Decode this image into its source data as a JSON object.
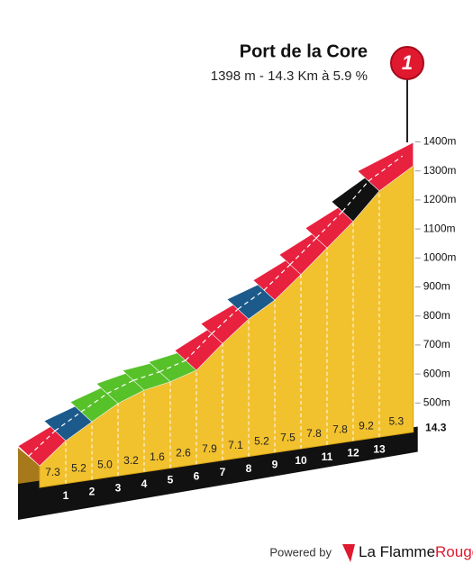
{
  "chart_data": {
    "type": "climb-profile",
    "title": "Port de la Core",
    "subtitle": "1398 m - 14.3 Km à 5.9 %",
    "badge": "1",
    "summit_altitude": 1398,
    "ylim": [
      400,
      1400
    ],
    "yticks": [
      {
        "value": 500,
        "label": "500m"
      },
      {
        "value": 600,
        "label": "600m"
      },
      {
        "value": 700,
        "label": "700m"
      },
      {
        "value": 800,
        "label": "800m"
      },
      {
        "value": 900,
        "label": "900m"
      },
      {
        "value": 1000,
        "label": "1000m"
      },
      {
        "value": 1100,
        "label": "1100m"
      },
      {
        "value": 1200,
        "label": "1200m"
      },
      {
        "value": 1300,
        "label": "1300m"
      },
      {
        "value": 1400,
        "label": "1400m"
      }
    ],
    "x": [
      1,
      2,
      3,
      4,
      5,
      6,
      7,
      8,
      9,
      10,
      11,
      12,
      13,
      14.3
    ],
    "series": [
      {
        "values": [
          7.3,
          5.2,
          5.0,
          3.2,
          1.6,
          2.6,
          7.9,
          7.1,
          5.2,
          7.5,
          7.8,
          7.8,
          9.2,
          5.3
        ],
        "value_labels": [
          "7.3",
          "5.2",
          "5.0",
          "3.2",
          "1.6",
          "2.6",
          "7.9",
          "7.1",
          "5.2",
          "7.5",
          "7.8",
          "7.8",
          "9.2",
          "5.3"
        ],
        "colors": [
          "#e8213f",
          "#1b5a8a",
          "#57c12a",
          "#57c12a",
          "#57c12a",
          "#57c12a",
          "#e8213f",
          "#e8213f",
          "#1b5a8a",
          "#e8213f",
          "#e8213f",
          "#e8213f",
          "#111111",
          "#e8213f"
        ]
      }
    ],
    "footer": {
      "powered_by": "Powered by",
      "brand": "La Flamme",
      "brand_accent": "Rouge"
    }
  }
}
